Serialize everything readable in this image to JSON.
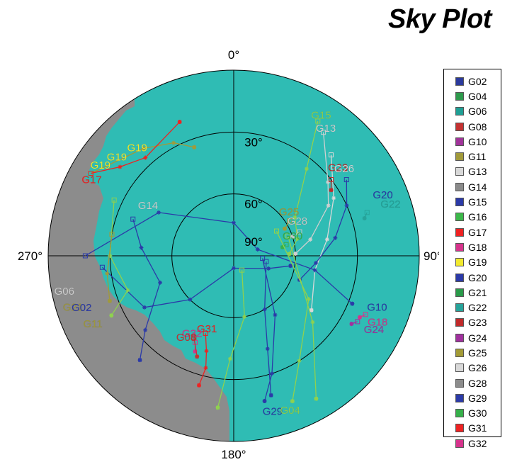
{
  "title": "Sky Plot",
  "chart_data": {
    "type": "polar-skyplot",
    "title": "Sky Plot",
    "azimuth_labels": [
      {
        "az": 0,
        "text": "0°"
      },
      {
        "az": 90,
        "text": "90°"
      },
      {
        "az": 180,
        "text": "180°"
      },
      {
        "az": 270,
        "text": "270°"
      }
    ],
    "elevation_rings": [
      {
        "el": 30,
        "text": "30°"
      },
      {
        "el": 60,
        "text": "60°"
      },
      {
        "el": 90,
        "text": "90°"
      }
    ],
    "colors": {
      "sky": "#2fbcb4",
      "obstruction": "#8c8c8c",
      "grid": "#000000"
    },
    "legend": [
      {
        "name": "G02",
        "color": "#2b3a9c"
      },
      {
        "name": "G04",
        "color": "#2e9a4c"
      },
      {
        "name": "G06",
        "color": "#1f9f95"
      },
      {
        "name": "G08",
        "color": "#c43232"
      },
      {
        "name": "G10",
        "color": "#a03399"
      },
      {
        "name": "G11",
        "color": "#a19a3a"
      },
      {
        "name": "G13",
        "color": "#d8d8d8"
      },
      {
        "name": "G14",
        "color": "#8a8a8a"
      },
      {
        "name": "G15",
        "color": "#2b3aa8"
      },
      {
        "name": "G16",
        "color": "#3cb84a"
      },
      {
        "name": "G17",
        "color": "#ee2222"
      },
      {
        "name": "G18",
        "color": "#d6338c"
      },
      {
        "name": "G19",
        "color": "#f2ea2e"
      },
      {
        "name": "G20",
        "color": "#2b3aa8"
      },
      {
        "name": "G21",
        "color": "#2a9a4a"
      },
      {
        "name": "G22",
        "color": "#26a39a"
      },
      {
        "name": "G23",
        "color": "#c02a2a"
      },
      {
        "name": "G24",
        "color": "#a0309e"
      },
      {
        "name": "G25",
        "color": "#a39b36"
      },
      {
        "name": "G26",
        "color": "#d8d8d8"
      },
      {
        "name": "G28",
        "color": "#8c8c8c"
      },
      {
        "name": "G29",
        "color": "#2b3aa8"
      },
      {
        "name": "G30",
        "color": "#36b04a"
      },
      {
        "name": "G31",
        "color": "#ee2222"
      },
      {
        "name": "G32",
        "color": "#d6338c"
      }
    ],
    "tracks": [
      {
        "id": "G15",
        "color": "#8fd14f",
        "points": [
          {
            "az": 32,
            "el": 13
          },
          {
            "az": 40,
            "el": 35
          },
          {
            "az": 58,
            "el": 55
          },
          {
            "az": 75,
            "el": 58
          },
          {
            "az": 88,
            "el": 63
          }
        ]
      },
      {
        "id": "G13",
        "color": "#d0d0d0",
        "points": [
          {
            "az": 36,
            "el": 16
          },
          {
            "az": 52,
            "el": 32
          },
          {
            "az": 62,
            "el": 38
          },
          {
            "az": 78,
            "el": 52
          },
          {
            "az": 88,
            "el": 60
          }
        ]
      },
      {
        "id": "G26",
        "color": "#d8d8d8",
        "points": [
          {
            "az": 44,
            "el": 22
          },
          {
            "az": 60,
            "el": 34
          },
          {
            "az": 80,
            "el": 44
          },
          {
            "az": 100,
            "el": 50
          },
          {
            "az": 125,
            "el": 44
          }
        ]
      },
      {
        "id": "G23",
        "color": "#c02a2a",
        "points": [
          {
            "az": 52,
            "el": 30
          },
          {
            "az": 56,
            "el": 33
          }
        ]
      },
      {
        "id": "G20",
        "color": "#2b3aa8",
        "points": [
          {
            "az": 56,
            "el": 24
          },
          {
            "az": 66,
            "el": 30
          },
          {
            "az": 80,
            "el": 40
          },
          {
            "az": 95,
            "el": 50
          },
          {
            "az": 110,
            "el": 56
          }
        ]
      },
      {
        "id": "G22",
        "color": "#26a39a",
        "points": [
          {
            "az": 72,
            "el": 22
          },
          {
            "az": 74,
            "el": 24
          }
        ]
      },
      {
        "id": "G25",
        "color": "#a39b36",
        "points": [
          {
            "az": 58,
            "el": 58
          },
          {
            "az": 62,
            "el": 62
          }
        ]
      },
      {
        "id": "G28",
        "color": "#c9c9c9",
        "points": [
          {
            "az": 70,
            "el": 56
          },
          {
            "az": 72,
            "el": 60
          }
        ]
      },
      {
        "id": "G30",
        "color": "#36b04a",
        "points": [
          {
            "az": 78,
            "el": 64
          },
          {
            "az": 80,
            "el": 66
          }
        ]
      },
      {
        "id": "G10",
        "color": "#2b3aa8",
        "points": [
          {
            "az": 270,
            "el": 18
          },
          {
            "az": 300,
            "el": 48
          },
          {
            "az": 0,
            "el": 74
          },
          {
            "az": 75,
            "el": 78
          },
          {
            "az": 100,
            "el": 50
          },
          {
            "az": 112,
            "el": 28
          }
        ]
      },
      {
        "id": "G12",
        "color": "#2b3aa8",
        "points": [
          {
            "az": 265,
            "el": 26
          },
          {
            "az": 240,
            "el": 40
          },
          {
            "az": 225,
            "el": 60
          },
          {
            "az": 180,
            "el": 84
          },
          {
            "az": 110,
            "el": 72
          },
          {
            "az": 100,
            "el": 62
          }
        ]
      },
      {
        "id": "G24",
        "color": "#a0309e",
        "points": [
          {
            "az": 118,
            "el": 22
          },
          {
            "az": 120,
            "el": 24
          }
        ]
      },
      {
        "id": "G18",
        "color": "#d6338c",
        "points": [
          {
            "az": 114,
            "el": 20
          },
          {
            "az": 116,
            "el": 22
          }
        ]
      },
      {
        "id": "G14",
        "color": "#2b3aa8",
        "points": [
          {
            "az": 290,
            "el": 38
          },
          {
            "az": 275,
            "el": 45
          },
          {
            "az": 250,
            "el": 52
          },
          {
            "az": 230,
            "el": 34
          },
          {
            "az": 222,
            "el": 22
          }
        ]
      },
      {
        "id": "G02",
        "color": "#2b3aa8",
        "points": [
          {
            "az": 100,
            "el": 74
          },
          {
            "az": 150,
            "el": 60
          },
          {
            "az": 160,
            "el": 42
          },
          {
            "az": 165,
            "el": 20
          }
        ]
      },
      {
        "id": "G29",
        "color": "#2b3aa8",
        "points": [
          {
            "az": 95,
            "el": 76
          },
          {
            "az": 145,
            "el": 55
          },
          {
            "az": 162,
            "el": 30
          },
          {
            "az": 168,
            "el": 18
          }
        ]
      },
      {
        "id": "G04",
        "color": "#8fd14f",
        "points": [
          {
            "az": 60,
            "el": 66
          },
          {
            "az": 120,
            "el": 48
          },
          {
            "az": 148,
            "el": 30
          },
          {
            "az": 158,
            "el": 14
          }
        ]
      },
      {
        "id": "G16",
        "color": "#8fd14f",
        "points": [
          {
            "az": 70,
            "el": 62
          },
          {
            "az": 130,
            "el": 40
          },
          {
            "az": 150,
            "el": 10
          }
        ]
      },
      {
        "id": "G21",
        "color": "#8fd14f",
        "points": [
          {
            "az": 150,
            "el": 82
          },
          {
            "az": 170,
            "el": 60
          },
          {
            "az": 182,
            "el": 40
          },
          {
            "az": 186,
            "el": 16
          }
        ]
      },
      {
        "id": "G31",
        "color": "#ee2222",
        "points": [
          {
            "az": 200,
            "el": 50
          },
          {
            "az": 196,
            "el": 42
          },
          {
            "az": 194,
            "el": 34
          },
          {
            "az": 195,
            "el": 25
          }
        ]
      },
      {
        "id": "G32",
        "color": "#d6338c",
        "points": [
          {
            "az": 204,
            "el": 44
          },
          {
            "az": 202,
            "el": 40
          }
        ]
      },
      {
        "id": "G08",
        "color": "#c43232",
        "points": [
          {
            "az": 206,
            "el": 46
          },
          {
            "az": 200,
            "el": 38
          }
        ]
      },
      {
        "id": "G19",
        "color": "#a19a3a",
        "points": [
          {
            "az": 300,
            "el": 10
          },
          {
            "az": 320,
            "el": 22
          },
          {
            "az": 332,
            "el": 28
          },
          {
            "az": 340,
            "el": 34
          }
        ]
      },
      {
        "id": "G17",
        "color": "#ee2222",
        "points": [
          {
            "az": 300,
            "el": 10
          },
          {
            "az": 308,
            "el": 20
          },
          {
            "az": 318,
            "el": 26
          },
          {
            "az": 338,
            "el": 20
          }
        ]
      },
      {
        "id": "G06",
        "color": "#8fd14f",
        "points": [
          {
            "az": 295,
            "el": 26
          },
          {
            "az": 270,
            "el": 30
          },
          {
            "az": 252,
            "el": 36
          },
          {
            "az": 244,
            "el": 24
          }
        ]
      },
      {
        "id": "G11",
        "color": "#a19a3a",
        "points": [
          {
            "az": 280,
            "el": 30
          },
          {
            "az": 262,
            "el": 28
          },
          {
            "az": 250,
            "el": 26
          }
        ]
      }
    ],
    "sat_labels": [
      {
        "id": "G15",
        "az": 32,
        "el": 10,
        "color": "#8fd14f"
      },
      {
        "id": "G13",
        "az": 36,
        "el": 14,
        "color": "#d0d0d0"
      },
      {
        "id": "G23",
        "az": 50,
        "el": 24,
        "color": "#c02a2a"
      },
      {
        "id": "G26",
        "az": 52,
        "el": 22,
        "color": "#d8d8d8"
      },
      {
        "id": "G20",
        "az": 68,
        "el": 12,
        "color": "#2b3aa8"
      },
      {
        "id": "G22",
        "az": 72,
        "el": 10,
        "color": "#26a39a"
      },
      {
        "id": "G25",
        "az": 52,
        "el": 56,
        "color": "#a39b36"
      },
      {
        "id": "G28",
        "az": 62,
        "el": 55,
        "color": "#c9c9c9"
      },
      {
        "id": "G30",
        "az": 72,
        "el": 60,
        "color": "#36b04a"
      },
      {
        "id": "G10",
        "az": 110,
        "el": 16,
        "color": "#2b3aa8"
      },
      {
        "id": "G18",
        "az": 115,
        "el": 13,
        "color": "#d6338c"
      },
      {
        "id": "G24",
        "az": 118,
        "el": 13,
        "color": "#a0309e"
      },
      {
        "id": "G14",
        "az": 300,
        "el": 42,
        "color": "#d0d0d0"
      },
      {
        "id": "G17",
        "az": 298,
        "el": 12,
        "color": "#ee2222"
      },
      {
        "id": "G19",
        "az": 318,
        "el": 20,
        "color": "#f2ea2e"
      },
      {
        "id": "G19",
        "az": 310,
        "el": 16,
        "color": "#f2ea2e"
      },
      {
        "id": "G19",
        "az": 304,
        "el": 12,
        "color": "#f2ea2e"
      },
      {
        "id": "G06",
        "az": 258,
        "el": 6,
        "color": "#d0d0d0"
      },
      {
        "id": "G21",
        "az": 252,
        "el": 8,
        "color": "#a19a3a"
      },
      {
        "id": "G02",
        "az": 251,
        "el": 12,
        "color": "#2b3aa8"
      },
      {
        "id": "G11",
        "az": 244,
        "el": 14,
        "color": "#a19a3a"
      },
      {
        "id": "G31",
        "az": 200,
        "el": 52,
        "color": "#ee2222"
      },
      {
        "id": "G32",
        "az": 208,
        "el": 47,
        "color": "#d6338c"
      },
      {
        "id": "G08",
        "az": 210,
        "el": 44,
        "color": "#c43232"
      },
      {
        "id": "G29",
        "az": 166,
        "el": 12,
        "color": "#2b3aa8"
      },
      {
        "id": "G04",
        "az": 160,
        "el": 10,
        "color": "#8fd14f"
      }
    ]
  }
}
